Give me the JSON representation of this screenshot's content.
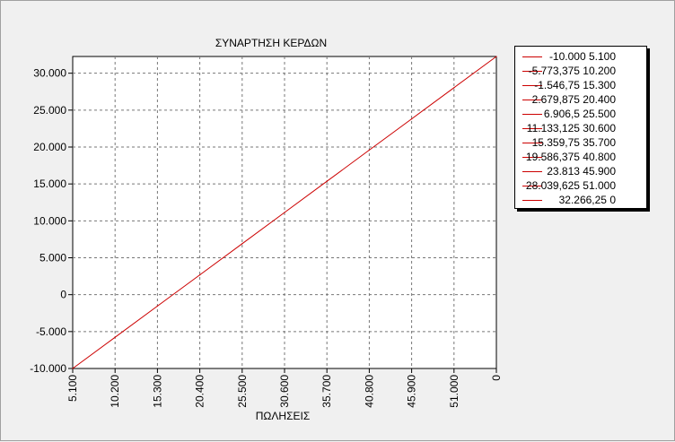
{
  "chart_data": {
    "type": "line",
    "title": "ΣΥΝΑΡΤΗΣΗ ΚΕΡΔΩΝ",
    "xlabel": "ΠΩΛΗΣΕΙΣ",
    "ylabel": "",
    "categories": [
      "5.100",
      "10.200",
      "15.300",
      "20.400",
      "25.500",
      "30.600",
      "35.700",
      "40.800",
      "45.900",
      "51.000",
      "0"
    ],
    "series": [
      {
        "values": [
          -10000,
          -5773.375,
          -1546.75,
          2679.875,
          6906.5,
          11133.125,
          15359.75,
          19586.375,
          23813,
          28039.625,
          32266.25
        ],
        "color": "#cc0000"
      }
    ],
    "y_ticks": [
      {
        "value": 30000,
        "label": "30.000"
      },
      {
        "value": 25000,
        "label": "25.000"
      },
      {
        "value": 20000,
        "label": "20.000"
      },
      {
        "value": 15000,
        "label": "15.000"
      },
      {
        "value": 10000,
        "label": "10.000"
      },
      {
        "value": 5000,
        "label": "5.000"
      },
      {
        "value": 0,
        "label": "0"
      },
      {
        "value": -5000,
        "label": "-5.000"
      },
      {
        "value": -10000,
        "label": "-10.000"
      }
    ],
    "ylim": [
      -10000,
      32266.25
    ],
    "grid": true,
    "legend_position": "right",
    "legend_entries": [
      "-10.000 5.100",
      "-5.773,375 10.200",
      "-1.546,75 15.300",
      "2.679,875 20.400",
      "6.906,5 25.500",
      "11.133,125 30.600",
      "15.359,75 35.700",
      "19.586,375 40.800",
      "23.813 45.900",
      "28.039,625 51.000",
      "32.266,25 0"
    ]
  }
}
